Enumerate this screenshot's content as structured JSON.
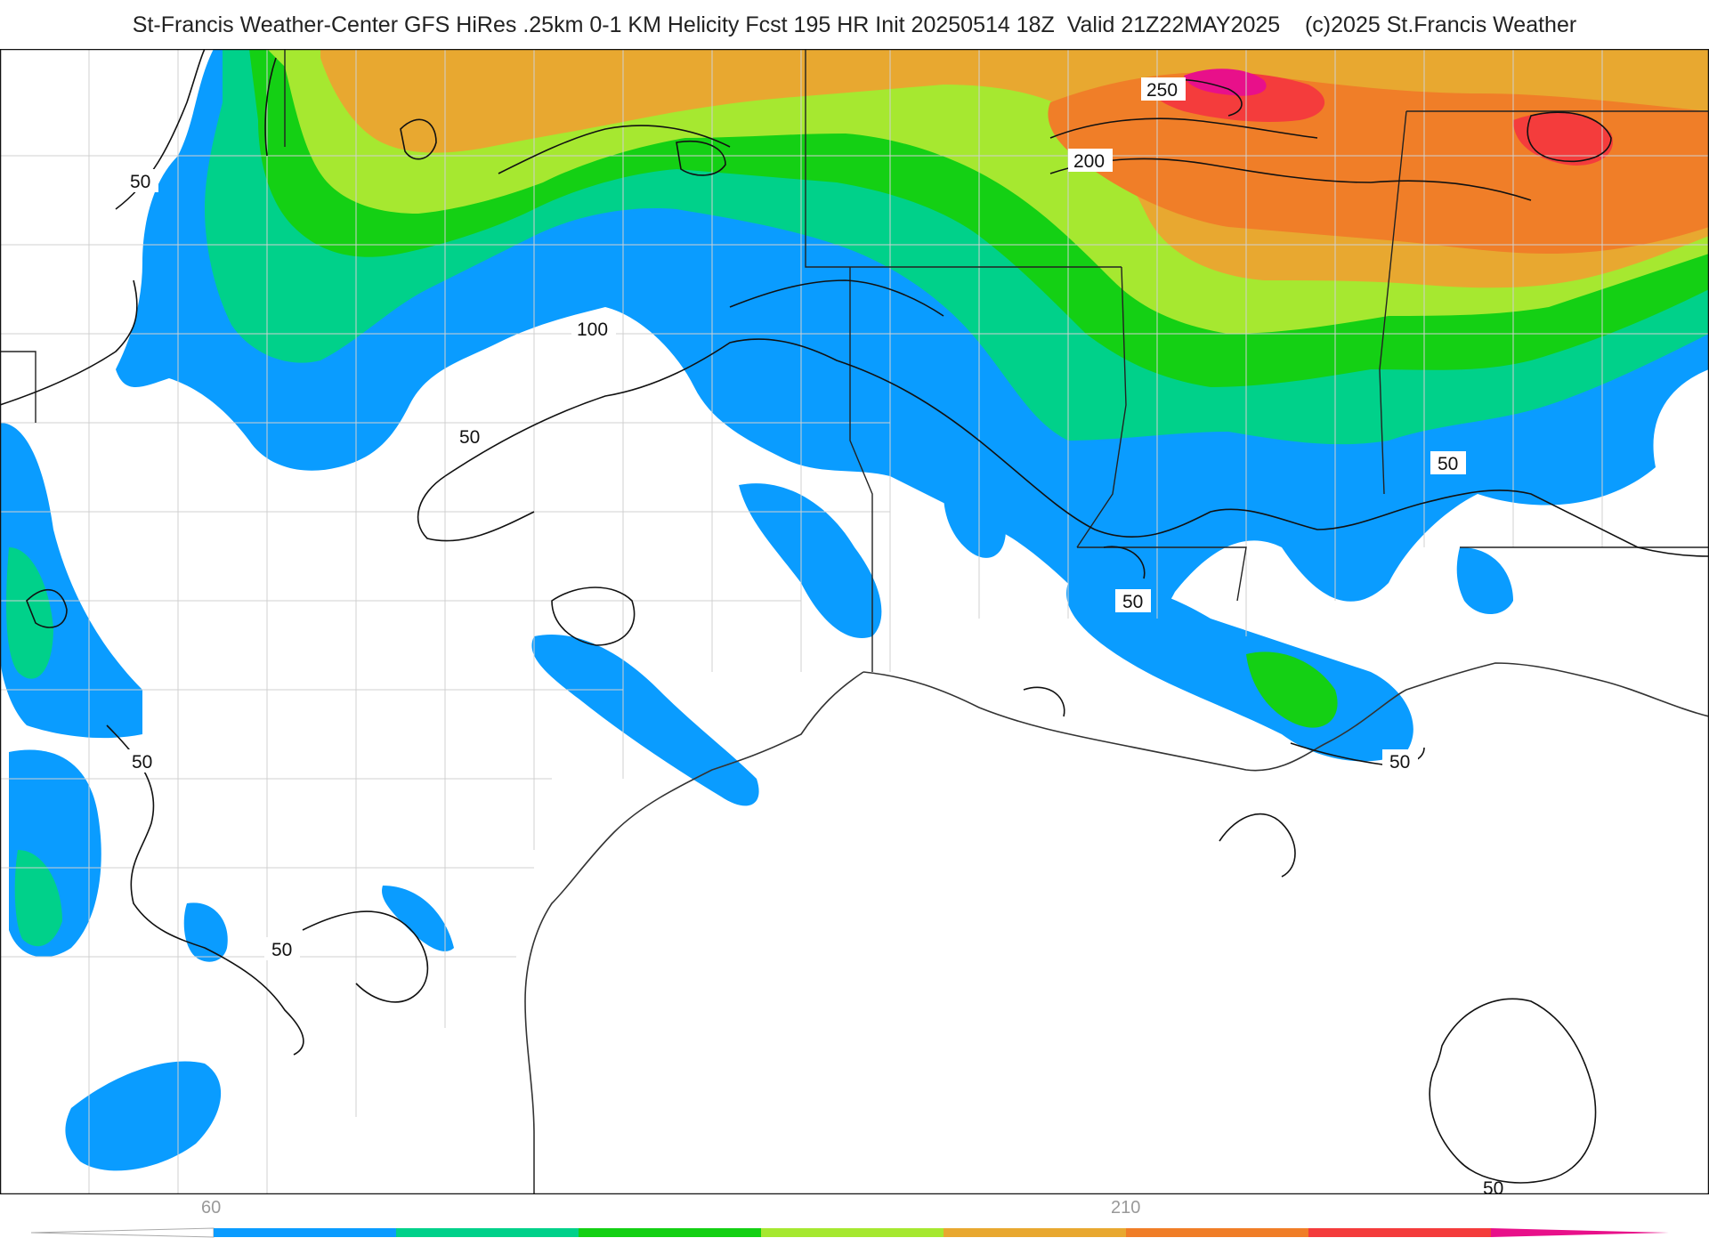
{
  "header": {
    "title": "St-Francis Weather-Center GFS HiRes .25km 0-1 KM Helicity Fcst 195 HR Init 20250514 18Z  Valid 21Z22MAY2025    (c)2025 St.Francis Weather"
  },
  "map": {
    "contour_labels": [
      "50",
      "50",
      "50",
      "50",
      "50",
      "50",
      "50",
      "50",
      "100",
      "200",
      "250"
    ]
  },
  "colorbar": {
    "tick_labels": [
      "60",
      "210"
    ],
    "colors": [
      "#0a9cff",
      "#00d18a",
      "#14d014",
      "#a6e830",
      "#e8a830",
      "#f07e28",
      "#f43c3c",
      "#e8108a"
    ]
  }
}
